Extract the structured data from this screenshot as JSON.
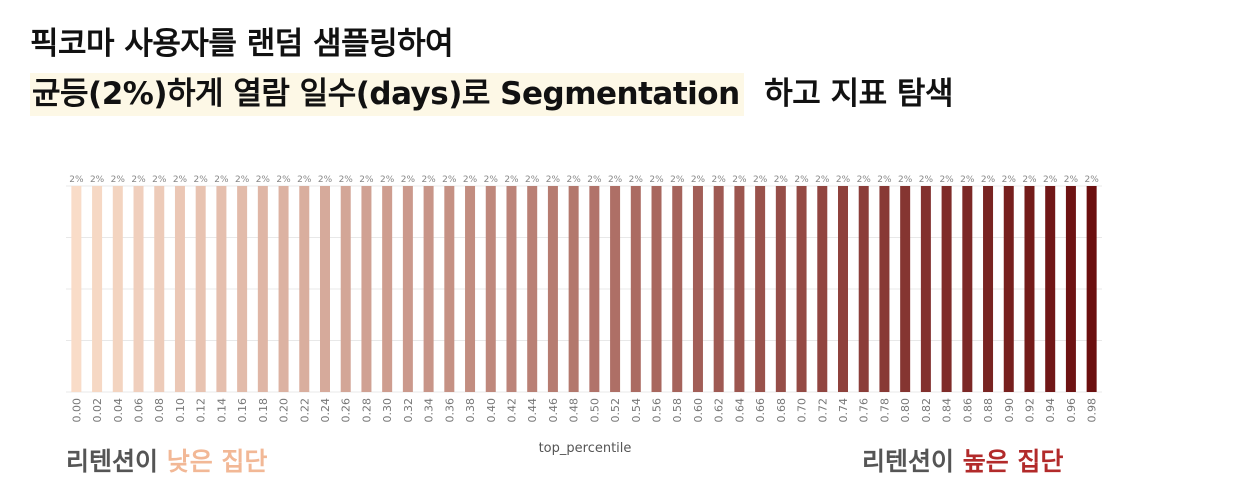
{
  "title": {
    "line1": "픽코마 사용자를 랜덤 샘플링하여",
    "line2_highlight": "균등(2%)하게 열람 일수(days)로 Segmentation",
    "line2_rest": "하고 지표 탐색"
  },
  "labels": {
    "left_prefix": "리텐션이 ",
    "left_accent": "낮은 집단",
    "right_prefix": "리텐션이 ",
    "right_accent": "높은 집단"
  },
  "colors": {
    "low": "#f9dcc8",
    "high": "#6b0f0f",
    "grid": "#e8e8e8",
    "tick": "#777777"
  },
  "chart_data": {
    "type": "bar",
    "xlabel": "top_percentile",
    "ylabel": "",
    "categories": [
      "0.00",
      "0.02",
      "0.04",
      "0.06",
      "0.08",
      "0.10",
      "0.12",
      "0.14",
      "0.16",
      "0.18",
      "0.20",
      "0.22",
      "0.24",
      "0.26",
      "0.28",
      "0.30",
      "0.32",
      "0.34",
      "0.36",
      "0.38",
      "0.40",
      "0.42",
      "0.44",
      "0.46",
      "0.48",
      "0.50",
      "0.52",
      "0.54",
      "0.56",
      "0.58",
      "0.60",
      "0.62",
      "0.64",
      "0.66",
      "0.68",
      "0.70",
      "0.72",
      "0.74",
      "0.76",
      "0.78",
      "0.80",
      "0.82",
      "0.84",
      "0.86",
      "0.88",
      "0.90",
      "0.92",
      "0.94",
      "0.96",
      "0.98"
    ],
    "values": [
      2,
      2,
      2,
      2,
      2,
      2,
      2,
      2,
      2,
      2,
      2,
      2,
      2,
      2,
      2,
      2,
      2,
      2,
      2,
      2,
      2,
      2,
      2,
      2,
      2,
      2,
      2,
      2,
      2,
      2,
      2,
      2,
      2,
      2,
      2,
      2,
      2,
      2,
      2,
      2,
      2,
      2,
      2,
      2,
      2,
      2,
      2,
      2,
      2,
      2
    ],
    "data_labels": [
      "2%",
      "2%",
      "2%",
      "2%",
      "2%",
      "2%",
      "2%",
      "2%",
      "2%",
      "2%",
      "2%",
      "2%",
      "2%",
      "2%",
      "2%",
      "2%",
      "2%",
      "2%",
      "2%",
      "2%",
      "2%",
      "2%",
      "2%",
      "2%",
      "2%",
      "2%",
      "2%",
      "2%",
      "2%",
      "2%",
      "2%",
      "2%",
      "2%",
      "2%",
      "2%",
      "2%",
      "2%",
      "2%",
      "2%",
      "2%",
      "2%",
      "2%",
      "2%",
      "2%",
      "2%",
      "2%",
      "2%",
      "2%",
      "2%",
      "2%"
    ],
    "ylim": [
      0,
      2
    ],
    "grid": true,
    "legend": false
  }
}
